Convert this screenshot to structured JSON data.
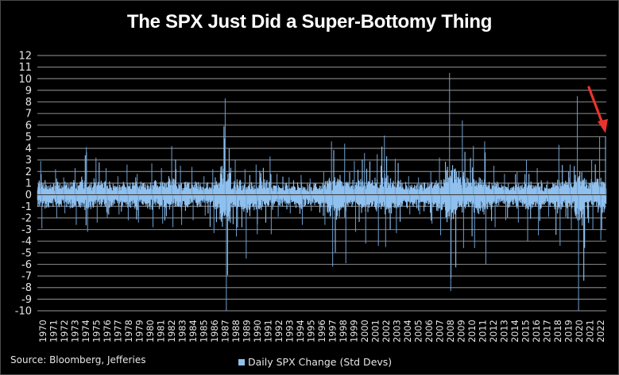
{
  "title": "The SPX Just Did a Super-Bottomy Thing",
  "source": "Source: Bloomberg, Jefferies",
  "legend": {
    "label": "Daily SPX Change (Std Devs)",
    "color": "#8fc0ee"
  },
  "colors": {
    "series": "#8fc0ee",
    "series_edge": "#6f9fcf",
    "grid": "#7a7a7a",
    "arrow": "#e8342c",
    "background": "#000000",
    "text": "#e6e6e6"
  },
  "chart_data": {
    "type": "bar",
    "title": "The SPX Just Did a Super-Bottomy Thing",
    "xlabel": "",
    "ylabel": "",
    "ylim": [
      -10,
      12
    ],
    "yticks": [
      12,
      11,
      10,
      9,
      8,
      7,
      6,
      5,
      4,
      3,
      2,
      1,
      0,
      -1,
      -2,
      -3,
      -4,
      -5,
      -6,
      -7,
      -8,
      -9,
      -10
    ],
    "grid": true,
    "legend_position": "bottom",
    "categories": [
      "1970",
      "1971",
      "1972",
      "1973",
      "1974",
      "1975",
      "1976",
      "1977",
      "1978",
      "1979",
      "1980",
      "1981",
      "1982",
      "1983",
      "1984",
      "1985",
      "1986",
      "1987",
      "1988",
      "1989",
      "1990",
      "1991",
      "1992",
      "1993",
      "1994",
      "1995",
      "1996",
      "1997",
      "1998",
      "1999",
      "2000",
      "2001",
      "2002",
      "2003",
      "2004",
      "2005",
      "2006",
      "2007",
      "2008",
      "2009",
      "2010",
      "2011",
      "2012",
      "2013",
      "2014",
      "2015",
      "2016",
      "2017",
      "2018",
      "2019",
      "2020",
      "2021",
      "2022"
    ],
    "series": [
      {
        "name": "Daily SPX Change (Std Devs)",
        "description": "Daily data; envelope per year approximated from the figure",
        "annual_max": [
          2.9,
          2.2,
          1.5,
          2.3,
          4.1,
          3.2,
          2.3,
          1.6,
          2.6,
          1.8,
          2.7,
          2.3,
          4.2,
          2.5,
          2.4,
          1.6,
          2.2,
          8.3,
          3.0,
          2.2,
          2.6,
          3.3,
          1.8,
          1.5,
          1.7,
          1.4,
          2.0,
          4.6,
          4.4,
          2.9,
          3.6,
          3.5,
          5.1,
          3.1,
          1.6,
          1.5,
          2.0,
          3.2,
          10.5,
          6.4,
          4.2,
          4.6,
          2.5,
          1.8,
          2.0,
          3.0,
          2.3,
          1.2,
          4.3,
          2.6,
          8.5,
          3.0,
          5.0
        ],
        "annual_min": [
          -2.9,
          -2.0,
          -1.6,
          -2.6,
          -3.2,
          -2.4,
          -2.0,
          -1.7,
          -2.2,
          -2.4,
          -2.8,
          -2.5,
          -2.8,
          -2.6,
          -2.2,
          -1.8,
          -3.3,
          -10.0,
          -3.6,
          -5.5,
          -3.4,
          -3.4,
          -1.9,
          -1.6,
          -2.6,
          -1.4,
          -2.6,
          -6.2,
          -5.9,
          -3.2,
          -4.2,
          -4.4,
          -4.5,
          -3.3,
          -1.7,
          -1.7,
          -2.5,
          -3.5,
          -8.3,
          -4.6,
          -4.6,
          -6.0,
          -2.8,
          -2.2,
          -2.4,
          -4.0,
          -3.5,
          -1.9,
          -4.4,
          -3.0,
          -10.0,
          -3.0,
          -3.9
        ],
        "annotated_last_value": 5.0
      }
    ],
    "annotation": {
      "type": "arrow",
      "color": "#e8342c",
      "points_to": "2022 spike ~ +5 std devs"
    }
  }
}
